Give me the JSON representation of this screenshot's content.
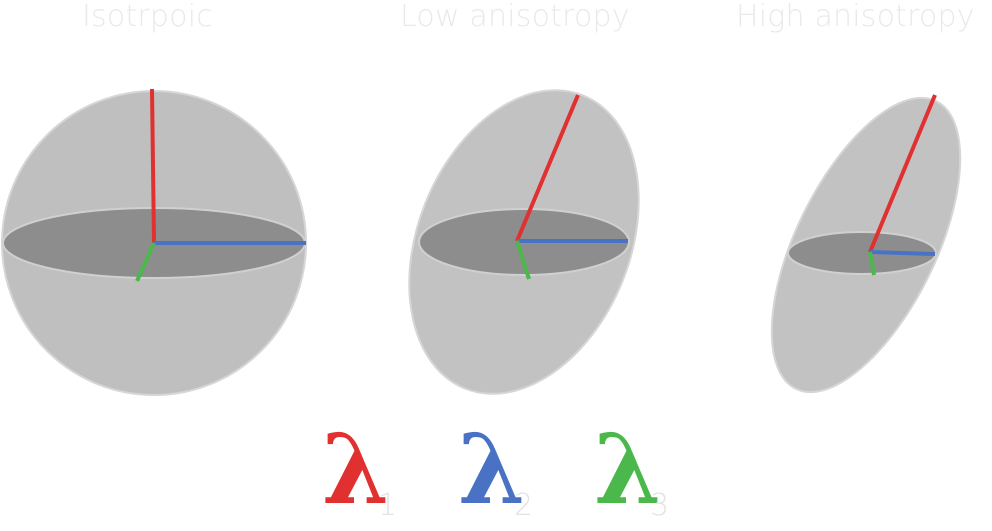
{
  "titles": {
    "isotropic": "Isotrpoic",
    "low": "Low anisotropy",
    "high": "High anisotropy"
  },
  "legend": [
    {
      "symbol": "λ",
      "subscript": "1",
      "color": "#e03030"
    },
    {
      "symbol": "λ",
      "subscript": "2",
      "color": "#4a72c4"
    },
    {
      "symbol": "λ",
      "subscript": "3",
      "color": "#4bb84b"
    }
  ],
  "colors": {
    "body": "#bfbfbf",
    "equator": "#8d8d8d",
    "axis1": "#e03030",
    "axis2": "#4a72c4",
    "axis3": "#4bb84b"
  }
}
